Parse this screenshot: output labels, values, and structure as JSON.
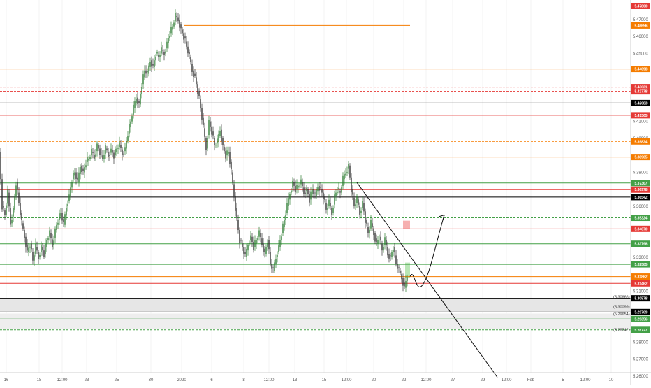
{
  "chart_data": {
    "type": "candlestick",
    "ylim": [
      5.255,
      5.4815
    ],
    "y_ticks": [
      5.47,
      5.46,
      5.45,
      5.43,
      5.42,
      5.41,
      5.4,
      5.38,
      5.36,
      5.33,
      5.31,
      5.28,
      5.27,
      5.26
    ],
    "y_tick_labels": [
      "5.47000",
      "5.46000",
      "5.45000",
      "5.43000",
      "5.42000",
      "5.41000",
      "5.40000",
      "5.38000",
      "5.36000",
      "5.33000",
      "5.31000",
      "5.28000",
      "5.27000",
      "5.26000"
    ],
    "x_labels": [
      "16",
      "18",
      "12:00",
      "23",
      "25",
      "30",
      "2020",
      "6",
      "8",
      "12:00",
      "13",
      "15",
      "12:00",
      "20",
      "22",
      "12:00",
      "27",
      "29",
      "12:00",
      "Feb",
      "5",
      "12:00",
      "10"
    ],
    "price_levels": [
      {
        "price": 5.478,
        "label": "5.47800",
        "color": "#e53935",
        "style": "solid"
      },
      {
        "price": 5.4665,
        "label": "5.46656",
        "color": "#f57c00",
        "style": "solid",
        "from_x": 264,
        "to_x": 587
      },
      {
        "price": 5.4409,
        "label": "5.44098",
        "color": "#f57c00",
        "style": "solid"
      },
      {
        "price": 5.4302,
        "label": "5.43021",
        "color": "#e53935",
        "style": "dashed"
      },
      {
        "price": 5.4277,
        "label": "5.42778",
        "color": "#e53935",
        "style": "dashed"
      },
      {
        "price": 5.4208,
        "label": "5.42083",
        "color": "#000000",
        "style": "solid"
      },
      {
        "price": 5.4136,
        "label": "5.41365",
        "color": "#e53935",
        "style": "solid"
      },
      {
        "price": 5.3982,
        "label": "5.39824",
        "color": "#f57c00",
        "style": "dashed"
      },
      {
        "price": 5.389,
        "label": "5.38905",
        "color": "#f57c00",
        "style": "solid"
      },
      {
        "price": 5.3737,
        "label": "5.37367",
        "color": "#43a047",
        "style": "solid"
      },
      {
        "price": 5.3698,
        "label": "5.36978",
        "color": "#e53935",
        "style": "solid"
      },
      {
        "price": 5.3654,
        "label": "5.36542",
        "color": "#000000",
        "style": "solid"
      },
      {
        "price": 5.3532,
        "label": "5.35324",
        "color": "#43a047",
        "style": "dashed"
      },
      {
        "price": 5.3467,
        "label": "5.34670",
        "color": "#e53935",
        "style": "solid"
      },
      {
        "price": 5.3379,
        "label": "5.33798",
        "color": "#43a047",
        "style": "solid"
      },
      {
        "price": 5.3258,
        "label": "5.32585",
        "color": "#43a047",
        "style": "solid"
      },
      {
        "price": 5.3186,
        "label": "5.31862",
        "color": "#f57c00",
        "style": "solid"
      },
      {
        "price": 5.3146,
        "label": "5.31462",
        "color": "#e53935",
        "style": "solid"
      },
      {
        "price": 5.3058,
        "label": "5.30578",
        "color": "#000000",
        "style": "solid"
      },
      {
        "price": 5.2977,
        "label": "5.29769",
        "color": "#000000",
        "style": "solid"
      },
      {
        "price": 5.2936,
        "label": "5.29356",
        "color": "#43a047",
        "style": "solid"
      },
      {
        "price": 5.2872,
        "label": "5.28727",
        "color": "#43a047",
        "style": "dashed"
      }
    ],
    "annotations": [
      "(5.30666)",
      "(5.30099)",
      "(5.29654)",
      "(5.28742)"
    ],
    "close_path": [
      [
        0,
        5.392
      ],
      [
        4,
        5.36
      ],
      [
        8,
        5.355
      ],
      [
        12,
        5.368
      ],
      [
        16,
        5.35
      ],
      [
        20,
        5.358
      ],
      [
        24,
        5.374
      ],
      [
        28,
        5.362
      ],
      [
        32,
        5.35
      ],
      [
        36,
        5.342
      ],
      [
        40,
        5.333
      ],
      [
        44,
        5.338
      ],
      [
        48,
        5.328
      ],
      [
        52,
        5.336
      ],
      [
        56,
        5.33
      ],
      [
        60,
        5.336
      ],
      [
        64,
        5.332
      ],
      [
        68,
        5.34
      ],
      [
        72,
        5.344
      ],
      [
        76,
        5.337
      ],
      [
        80,
        5.346
      ],
      [
        84,
        5.352
      ],
      [
        88,
        5.356
      ],
      [
        92,
        5.349
      ],
      [
        96,
        5.36
      ],
      [
        100,
        5.366
      ],
      [
        104,
        5.376
      ],
      [
        108,
        5.38
      ],
      [
        112,
        5.374
      ],
      [
        116,
        5.384
      ],
      [
        120,
        5.38
      ],
      [
        124,
        5.386
      ],
      [
        128,
        5.388
      ],
      [
        132,
        5.392
      ],
      [
        136,
        5.389
      ],
      [
        140,
        5.396
      ],
      [
        144,
        5.392
      ],
      [
        148,
        5.388
      ],
      [
        152,
        5.394
      ],
      [
        156,
        5.39
      ],
      [
        160,
        5.393
      ],
      [
        164,
        5.39
      ],
      [
        168,
        5.394
      ],
      [
        172,
        5.396
      ],
      [
        176,
        5.391
      ],
      [
        180,
        5.394
      ],
      [
        184,
        5.403
      ],
      [
        188,
        5.41
      ],
      [
        192,
        5.418
      ],
      [
        196,
        5.424
      ],
      [
        200,
        5.42
      ],
      [
        204,
        5.432
      ],
      [
        208,
        5.44
      ],
      [
        212,
        5.438
      ],
      [
        216,
        5.446
      ],
      [
        220,
        5.442
      ],
      [
        224,
        5.45
      ],
      [
        228,
        5.448
      ],
      [
        232,
        5.452
      ],
      [
        236,
        5.45
      ],
      [
        240,
        5.456
      ],
      [
        244,
        5.462
      ],
      [
        248,
        5.466
      ],
      [
        252,
        5.472
      ],
      [
        256,
        5.47
      ],
      [
        260,
        5.464
      ],
      [
        264,
        5.46
      ],
      [
        268,
        5.454
      ],
      [
        272,
        5.448
      ],
      [
        276,
        5.44
      ],
      [
        280,
        5.436
      ],
      [
        284,
        5.428
      ],
      [
        288,
        5.418
      ],
      [
        292,
        5.406
      ],
      [
        296,
        5.394
      ],
      [
        300,
        5.41
      ],
      [
        304,
        5.404
      ],
      [
        308,
        5.396
      ],
      [
        312,
        5.398
      ],
      [
        316,
        5.405
      ],
      [
        320,
        5.395
      ],
      [
        324,
        5.39
      ],
      [
        328,
        5.392
      ],
      [
        332,
        5.38
      ],
      [
        336,
        5.366
      ],
      [
        340,
        5.352
      ],
      [
        344,
        5.34
      ],
      [
        348,
        5.336
      ],
      [
        352,
        5.33
      ],
      [
        356,
        5.338
      ],
      [
        360,
        5.342
      ],
      [
        364,
        5.336
      ],
      [
        368,
        5.34
      ],
      [
        372,
        5.344
      ],
      [
        376,
        5.338
      ],
      [
        380,
        5.332
      ],
      [
        384,
        5.34
      ],
      [
        388,
        5.326
      ],
      [
        392,
        5.322
      ],
      [
        396,
        5.33
      ],
      [
        400,
        5.336
      ],
      [
        404,
        5.344
      ],
      [
        408,
        5.352
      ],
      [
        412,
        5.36
      ],
      [
        416,
        5.368
      ],
      [
        420,
        5.374
      ],
      [
        424,
        5.37
      ],
      [
        428,
        5.372
      ],
      [
        432,
        5.374
      ],
      [
        436,
        5.368
      ],
      [
        440,
        5.37
      ],
      [
        444,
        5.364
      ],
      [
        448,
        5.37
      ],
      [
        452,
        5.366
      ],
      [
        456,
        5.372
      ],
      [
        460,
        5.37
      ],
      [
        464,
        5.366
      ],
      [
        468,
        5.358
      ],
      [
        472,
        5.362
      ],
      [
        476,
        5.356
      ],
      [
        480,
        5.366
      ],
      [
        484,
        5.37
      ],
      [
        488,
        5.368
      ],
      [
        492,
        5.376
      ],
      [
        496,
        5.38
      ],
      [
        500,
        5.384
      ],
      [
        504,
        5.37
      ],
      [
        508,
        5.36
      ],
      [
        512,
        5.364
      ],
      [
        516,
        5.356
      ],
      [
        520,
        5.362
      ],
      [
        524,
        5.352
      ],
      [
        528,
        5.344
      ],
      [
        532,
        5.35
      ],
      [
        536,
        5.344
      ],
      [
        540,
        5.338
      ],
      [
        544,
        5.342
      ],
      [
        548,
        5.334
      ],
      [
        552,
        5.34
      ],
      [
        556,
        5.332
      ],
      [
        560,
        5.33
      ],
      [
        564,
        5.336
      ],
      [
        568,
        5.326
      ],
      [
        572,
        5.322
      ],
      [
        576,
        5.318
      ],
      [
        580,
        5.312
      ],
      [
        584,
        5.32
      ]
    ],
    "trendline": [
      [
        511,
        5.374
      ],
      [
        712,
        5.2593
      ]
    ],
    "projection": [
      [
        587,
        5.3186
      ],
      [
        605,
        5.3137
      ],
      [
        620,
        5.3318
      ],
      [
        636,
        5.3548
      ]
    ]
  }
}
